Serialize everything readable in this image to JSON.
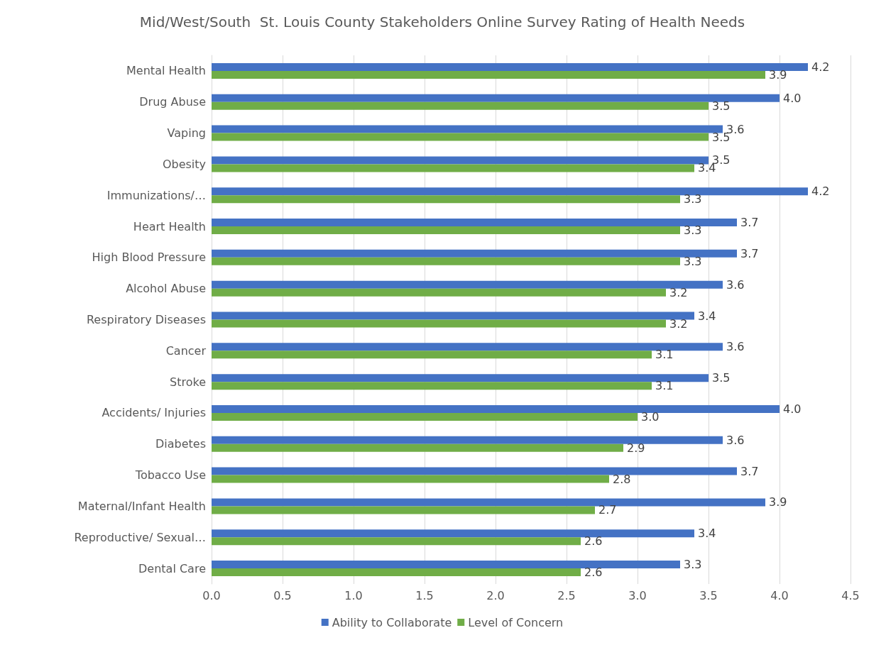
{
  "chart_data": {
    "type": "bar",
    "orientation": "horizontal",
    "title": "Mid/West/South  St. Louis County Stakeholders Online Survey Rating of Health Needs",
    "categories": [
      "Mental Health",
      "Drug Abuse",
      "Vaping",
      "Obesity",
      "Immunizations/…",
      "Heart Health",
      "High Blood Pressure",
      "Alcohol Abuse",
      "Respiratory Diseases",
      "Cancer",
      "Stroke",
      "Accidents/ Injuries",
      "Diabetes",
      "Tobacco Use",
      "Maternal/Infant Health",
      "Reproductive/ Sexual…",
      "Dental Care"
    ],
    "series": [
      {
        "name": "Ability to Collaborate",
        "color": "#4472c4",
        "values": [
          4.2,
          4.0,
          3.6,
          3.5,
          4.2,
          3.7,
          3.7,
          3.6,
          3.4,
          3.6,
          3.5,
          4.0,
          3.6,
          3.7,
          3.9,
          3.4,
          3.3
        ],
        "value_labels": [
          "4.2",
          "4.0",
          "3.6",
          "3.5",
          "4.2",
          "3.7",
          "3.7",
          "3.6",
          "3.4",
          "3.6",
          "3.5",
          "4.0",
          "3.6",
          "3.7",
          "3.9",
          "3.4",
          "3.3"
        ]
      },
      {
        "name": "Level of Concern",
        "color": "#70ad47",
        "values": [
          3.9,
          3.5,
          3.5,
          3.4,
          3.3,
          3.3,
          3.3,
          3.2,
          3.2,
          3.1,
          3.1,
          3.0,
          2.9,
          2.8,
          2.7,
          2.6,
          2.6
        ],
        "value_labels": [
          "3.9",
          "3.5",
          "3.5",
          "3.4",
          "3.3",
          "3.3",
          "3.3",
          "3.2",
          "3.2",
          "3.1",
          "3.1",
          "3.0",
          "2.9",
          "2.8",
          "2.7",
          "2.6",
          "2.6"
        ]
      }
    ],
    "xlim": [
      0,
      4.5
    ],
    "xticks": [
      {
        "value": 0,
        "label": "0.0"
      },
      {
        "value": 0.5,
        "label": "0.5"
      },
      {
        "value": 1,
        "label": "1.0"
      },
      {
        "value": 1.5,
        "label": "1.5"
      },
      {
        "value": 2,
        "label": "2.0"
      },
      {
        "value": 2.5,
        "label": "2.5"
      },
      {
        "value": 3,
        "label": "3.0"
      },
      {
        "value": 3.5,
        "label": "3.5"
      },
      {
        "value": 4,
        "label": "4.0"
      },
      {
        "value": 4.5,
        "label": "4.5"
      }
    ],
    "grid": "x",
    "legend": "bottom"
  }
}
